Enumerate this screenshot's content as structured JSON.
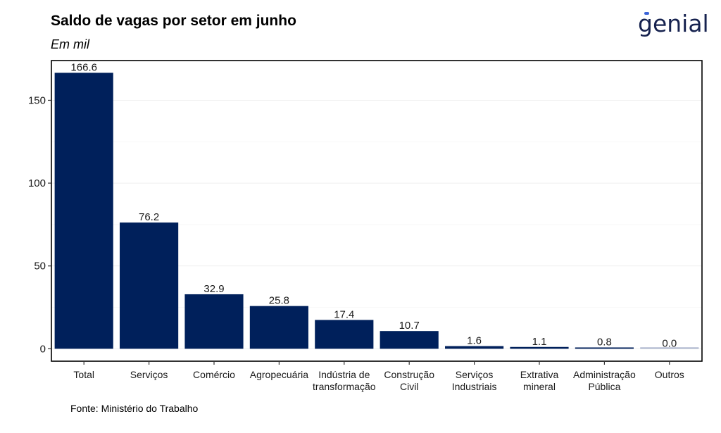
{
  "header": {
    "title": "Saldo de vagas por setor em junho",
    "subtitle": "Em mil",
    "logo_text": "genial"
  },
  "footer": {
    "source": "Fonte: Ministério do Trabalho"
  },
  "colors": {
    "bar": "#00205b",
    "bar_outros": "#a9b4cc",
    "brand": "#16224f",
    "brand_accent": "#3a63d8"
  },
  "chart_data": {
    "type": "bar",
    "title": "Saldo de vagas por setor em junho",
    "subtitle": "Em mil",
    "xlabel": "",
    "ylabel": "",
    "categories": [
      [
        "Total"
      ],
      [
        "Serviços"
      ],
      [
        "Comércio"
      ],
      [
        "Agropecuária"
      ],
      [
        "Indústria de",
        "transformação"
      ],
      [
        "Construção",
        "Civil"
      ],
      [
        "Serviços",
        "Industriais"
      ],
      [
        "Extrativa",
        "mineral"
      ],
      [
        "Administração",
        "Pública"
      ],
      [
        "Outros"
      ]
    ],
    "values": [
      166.6,
      76.2,
      32.9,
      25.8,
      17.4,
      10.7,
      1.6,
      1.1,
      0.8,
      0.0
    ],
    "value_labels": [
      "166.6",
      "76.2",
      "32.9",
      "25.8",
      "17.4",
      "10.7",
      "1.6",
      "1.1",
      "0.8",
      "0.0"
    ],
    "yticks": [
      0,
      50,
      100,
      150
    ],
    "ylim": [
      -7.5,
      174
    ],
    "grid": true,
    "legend": "none"
  }
}
